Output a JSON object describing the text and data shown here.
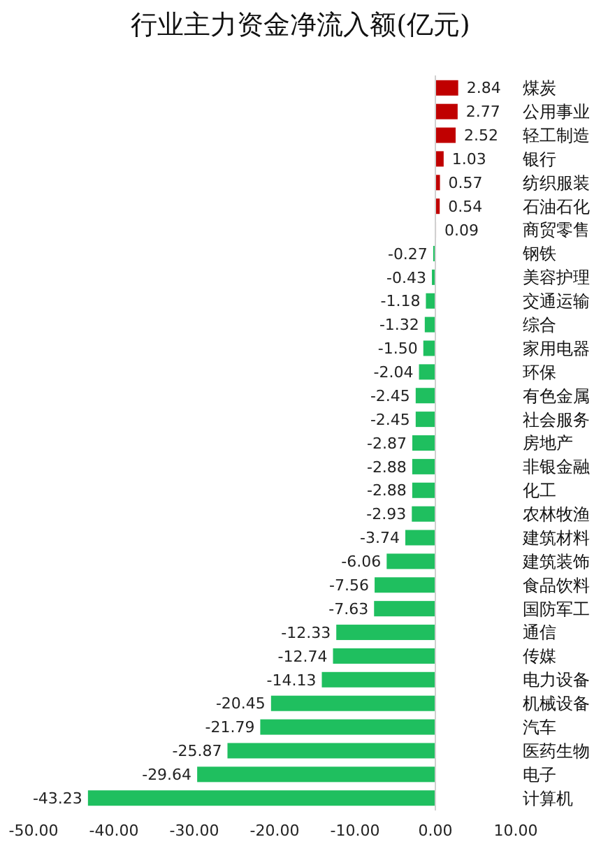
{
  "chart_data": {
    "type": "bar",
    "orientation": "horizontal",
    "title": "行业主力资金净流入额(亿元)",
    "categories": [
      "煤炭",
      "公用事业",
      "轻工制造",
      "银行",
      "纺织服装",
      "石油石化",
      "商贸零售",
      "钢铁",
      "美容护理",
      "交通运输",
      "综合",
      "家用电器",
      "环保",
      "有色金属",
      "社会服务",
      "房地产",
      "非银金融",
      "化工",
      "农林牧渔",
      "建筑材料",
      "建筑装饰",
      "食品饮料",
      "国防军工",
      "通信",
      "传媒",
      "电力设备",
      "机械设备",
      "汽车",
      "医药生物",
      "电子",
      "计算机"
    ],
    "values": [
      2.84,
      2.77,
      2.52,
      1.03,
      0.57,
      0.54,
      0.09,
      -0.27,
      -0.43,
      -1.18,
      -1.32,
      -1.5,
      -2.04,
      -2.45,
      -2.45,
      -2.87,
      -2.88,
      -2.88,
      -2.93,
      -3.74,
      -6.06,
      -7.56,
      -7.63,
      -12.33,
      -12.74,
      -14.13,
      -20.45,
      -21.79,
      -25.87,
      -29.64,
      -43.23
    ],
    "colors": [
      "#c00000",
      "#c00000",
      "#c00000",
      "#c00000",
      "#c00000",
      "#c00000",
      "#c00000",
      "#1fbf5f",
      "#1fbf5f",
      "#1fbf5f",
      "#1fbf5f",
      "#1fbf5f",
      "#1fbf5f",
      "#1fbf5f",
      "#1fbf5f",
      "#1fbf5f",
      "#1fbf5f",
      "#1fbf5f",
      "#1fbf5f",
      "#1fbf5f",
      "#1fbf5f",
      "#1fbf5f",
      "#1fbf5f",
      "#1fbf5f",
      "#1fbf5f",
      "#1fbf5f",
      "#1fbf5f",
      "#1fbf5f",
      "#1fbf5f",
      "#1fbf5f",
      "#1fbf5f"
    ],
    "xlim": [
      -50,
      10
    ],
    "xticks": [
      {
        "value": -50,
        "label": "-50.00"
      },
      {
        "value": -40,
        "label": "-40.00"
      },
      {
        "value": -30,
        "label": "-30.00"
      },
      {
        "value": -20,
        "label": "-20.00"
      },
      {
        "value": -10,
        "label": "-10.00"
      },
      {
        "value": 0,
        "label": "0.00"
      },
      {
        "value": 10,
        "label": "10.00"
      }
    ],
    "value_labels": [
      "2.84",
      "2.77",
      "2.52",
      "1.03",
      "0.57",
      "0.54",
      "0.09",
      "-0.27",
      "-0.43",
      "-1.18",
      "-1.32",
      "-1.50",
      "-2.04",
      "-2.45",
      "-2.45",
      "-2.87",
      "-2.88",
      "-2.88",
      "-2.93",
      "-3.74",
      "-6.06",
      "-7.56",
      "-7.63",
      "-12.33",
      "-12.74",
      "-14.13",
      "-20.45",
      "-21.79",
      "-25.87",
      "-29.64",
      "-43.23"
    ]
  }
}
